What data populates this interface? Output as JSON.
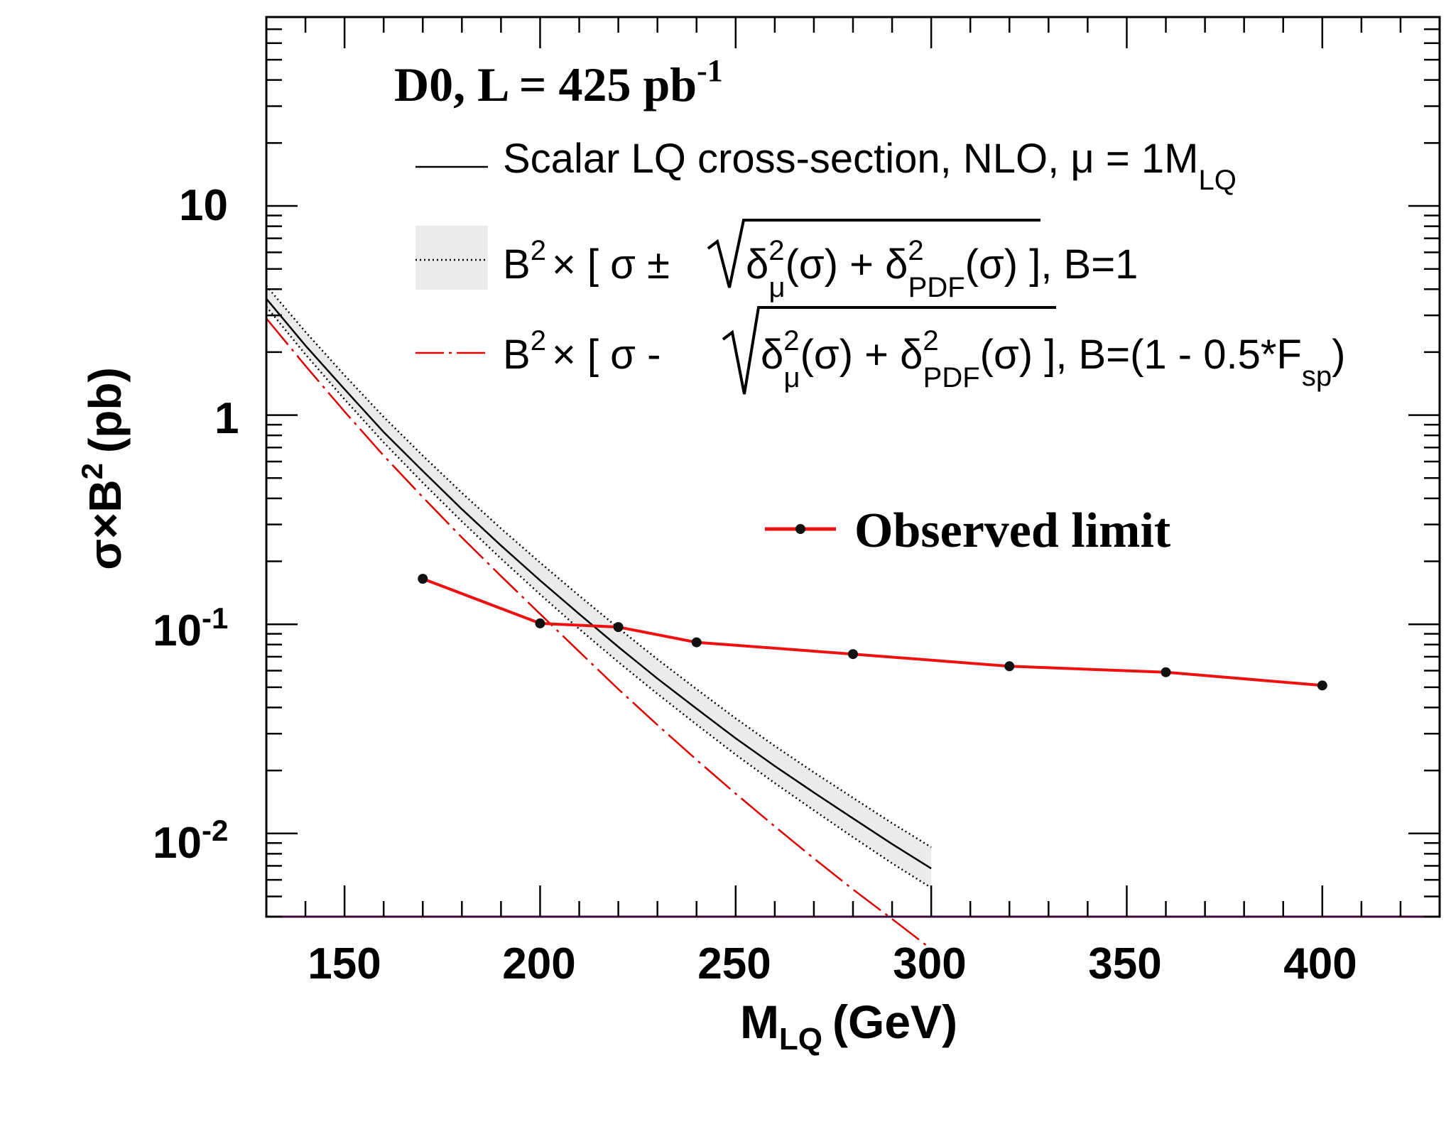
{
  "chart_data": {
    "type": "line",
    "title": "D0, L = 425 pb",
    "title_sup": "-1",
    "xlabel": "M",
    "xlabel_sub": "LQ",
    "xlabel_unit": "(GeV)",
    "ylabel": "σ×B",
    "ylabel_sup": "2",
    "ylabel_unit": "(pb)",
    "xlim": [
      130,
      430
    ],
    "ylim": [
      0.004,
      80
    ],
    "yscale": "log",
    "grid": false,
    "legend_position": "top-right",
    "x_ticks": [
      "150",
      "200",
      "250",
      "300",
      "350",
      "400"
    ],
    "y_ticks": [
      {
        "base": "10",
        "exp": "-2"
      },
      {
        "base": "10",
        "exp": "-1"
      },
      {
        "base": "1",
        "exp": ""
      },
      {
        "base": "10",
        "exp": ""
      }
    ],
    "legend": {
      "nlo": {
        "text": "Scalar LQ cross-section, NLO, μ = 1M",
        "sub": "LQ"
      },
      "band": {
        "b": "B",
        "sup": "2",
        "mid": "× [ σ ±",
        "delta_mu": "δ",
        "mu_sub": "μ",
        "sigma_arg": "(σ) + δ",
        "pdf_sub": "PDF",
        "pdf_arg": "(σ)",
        "tail": " ], B=1"
      },
      "minus": {
        "b": "B",
        "sup": "2",
        "mid": "× [ σ  -",
        "delta_mu": "δ",
        "mu_sub": "μ",
        "sigma_arg": "(σ) + δ",
        "pdf_sub": "PDF",
        "pdf_arg": "(σ)",
        "tail": " ], B=(1 - 0.5*F",
        "tail_sub": "sp",
        "close": ")"
      },
      "observed": "Observed limit"
    },
    "series": [
      {
        "name": "Scalar LQ cross-section, NLO, μ = 1M_LQ",
        "style": "solid",
        "color": "#000000",
        "x": [
          130,
          140,
          150,
          160,
          170,
          180,
          190,
          200,
          210,
          220,
          230,
          240,
          250,
          260,
          270,
          280,
          290,
          300
        ],
        "values": [
          3.6,
          2.15,
          1.33,
          0.83,
          0.54,
          0.355,
          0.238,
          0.162,
          0.112,
          0.078,
          0.055,
          0.0395,
          0.0285,
          0.021,
          0.0157,
          0.0118,
          0.0089,
          0.0068
        ]
      },
      {
        "name": "upper band",
        "style": "dotted",
        "color": "#000000",
        "x": [
          130,
          140,
          150,
          160,
          170,
          180,
          190,
          200,
          210,
          220,
          230,
          240,
          250,
          260,
          270,
          280,
          290,
          300
        ],
        "values": [
          4.15,
          2.5,
          1.55,
          0.98,
          0.64,
          0.425,
          0.287,
          0.197,
          0.137,
          0.096,
          0.068,
          0.049,
          0.0355,
          0.0262,
          0.0196,
          0.0148,
          0.0112,
          0.0086
        ]
      },
      {
        "name": "lower band",
        "style": "dotted",
        "color": "#000000",
        "x": [
          130,
          140,
          150,
          160,
          170,
          180,
          190,
          200,
          210,
          220,
          230,
          240,
          250,
          260,
          270,
          280,
          290,
          300
        ],
        "values": [
          3.3,
          1.95,
          1.19,
          0.74,
          0.475,
          0.31,
          0.206,
          0.139,
          0.095,
          0.066,
          0.0465,
          0.0332,
          0.0238,
          0.0174,
          0.0129,
          0.0096,
          0.0072,
          0.0055
        ]
      },
      {
        "name": "B² × [ σ - sqrt(δ²_μ(σ) + δ²_PDF(σ)) ], B=(1 - 0.5*F_sp)",
        "style": "dash-dot",
        "color": "#dd0000",
        "x": [
          130,
          140,
          150,
          160,
          170,
          180,
          190,
          200,
          210,
          220,
          230,
          240,
          250,
          260,
          270,
          280,
          290,
          300
        ],
        "values": [
          2.9,
          1.72,
          1.04,
          0.64,
          0.405,
          0.26,
          0.17,
          0.112,
          0.074,
          0.049,
          0.033,
          0.0225,
          0.0155,
          0.0108,
          0.0076,
          0.0054,
          0.0039,
          0.0028
        ]
      },
      {
        "name": "Observed limit",
        "style": "solid-markers",
        "color": "#ee1111",
        "x": [
          170,
          200,
          220,
          240,
          280,
          320,
          360,
          400
        ],
        "values": [
          0.165,
          0.101,
          0.097,
          0.082,
          0.072,
          0.063,
          0.059,
          0.051
        ]
      }
    ]
  }
}
